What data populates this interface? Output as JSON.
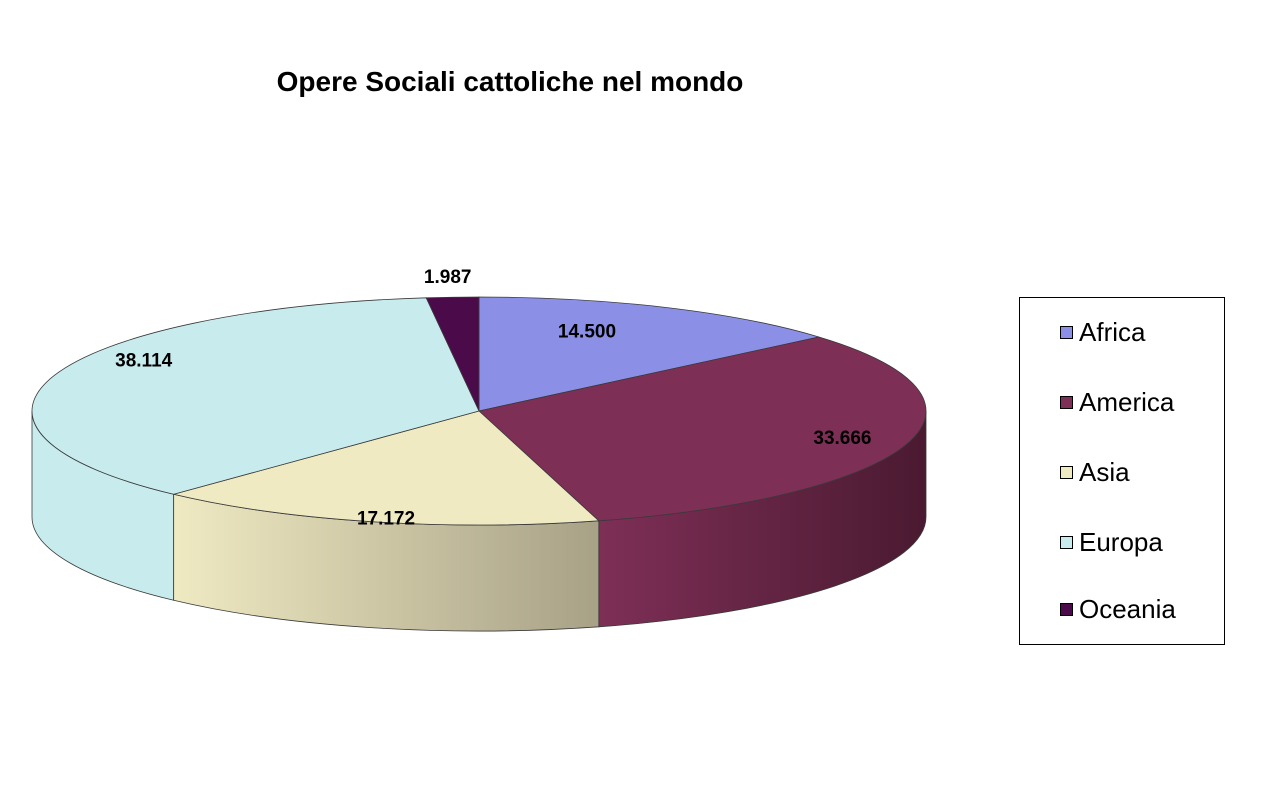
{
  "chart_data": {
    "type": "pie",
    "title": "Opere Sociali cattoliche nel mondo",
    "slices": [
      {
        "label": "Africa",
        "value": 14500,
        "display": "14.500",
        "color": "#8b8fe6",
        "side": "#5b5fa6"
      },
      {
        "label": "America",
        "value": 33666,
        "display": "33.666",
        "color": "#7e2f56",
        "side": "#4a1a31"
      },
      {
        "label": "Asia",
        "value": 17172,
        "display": "17.172",
        "color": "#efeac2",
        "side": "#a8a187"
      },
      {
        "label": "Europa",
        "value": 38114,
        "display": "38.114",
        "color": "#c8ecee",
        "side": "#bde2e4"
      },
      {
        "label": "Oceania",
        "value": 1987,
        "display": "1.987",
        "color": "#4b0b4b",
        "side": "#2e062e"
      }
    ],
    "legend_position": "right",
    "style": "3d"
  }
}
